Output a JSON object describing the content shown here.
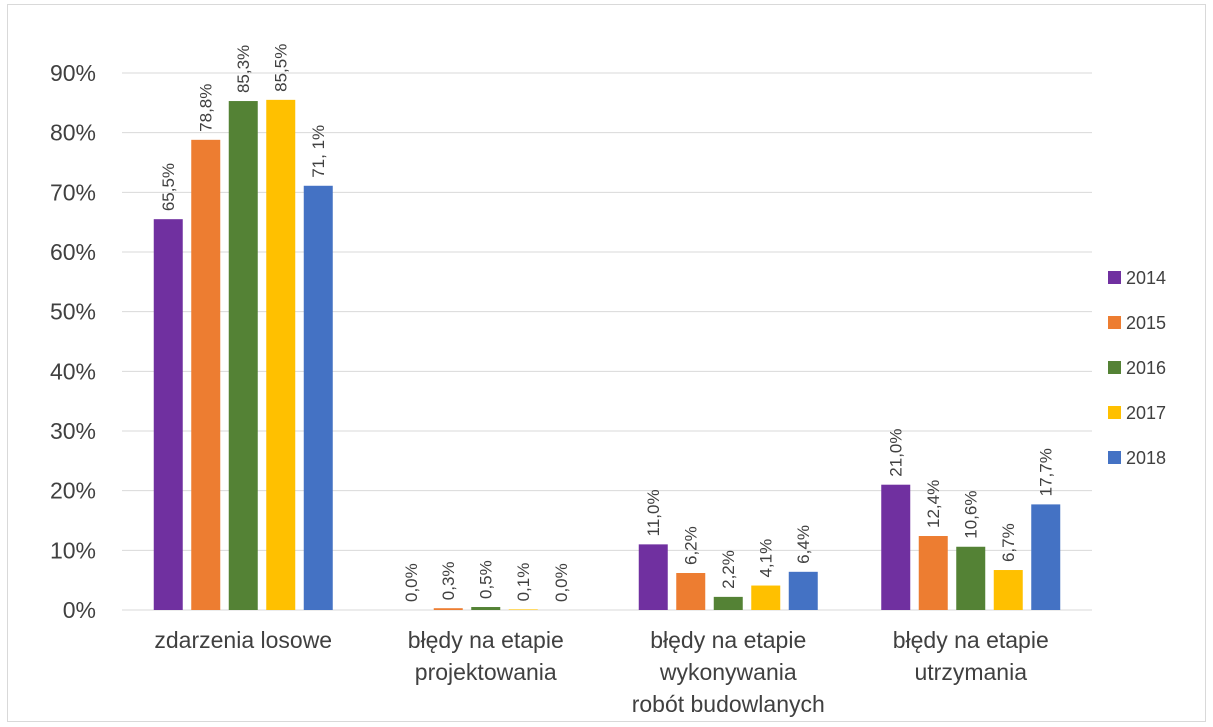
{
  "chart_data": {
    "type": "bar",
    "title": "",
    "xlabel": "",
    "ylabel": "",
    "ylim": [
      0,
      0.9
    ],
    "yticks": [
      "0%",
      "10%",
      "20%",
      "30%",
      "40%",
      "50%",
      "60%",
      "70%",
      "80%",
      "90%"
    ],
    "grid": true,
    "legend_position": "right",
    "categories": [
      [
        "zdarzenia losowe"
      ],
      [
        "błędy na etapie",
        "projektowania"
      ],
      [
        "błędy na etapie",
        "wykonywania",
        "robót budowlanych"
      ],
      [
        "błędy na etapie",
        "utrzymania"
      ]
    ],
    "series": [
      {
        "name": "2014",
        "color": "#7030a0",
        "values": [
          0.655,
          0.0,
          0.11,
          0.21
        ],
        "labels": [
          "65,5%",
          "0,0%",
          "11,0%",
          "21,0%"
        ]
      },
      {
        "name": "2015",
        "color": "#ed7d31",
        "values": [
          0.788,
          0.003,
          0.062,
          0.124
        ],
        "labels": [
          "78,8%",
          "0,3%",
          "6,2%",
          "12,4%"
        ]
      },
      {
        "name": "2016",
        "color": "#548235",
        "values": [
          0.853,
          0.005,
          0.022,
          0.106
        ],
        "labels": [
          "85,3%",
          "0,5%",
          "2,2%",
          "10,6%"
        ]
      },
      {
        "name": "2017",
        "color": "#ffc000",
        "values": [
          0.855,
          0.001,
          0.041,
          0.067
        ],
        "labels": [
          "85,5%",
          "0,1%",
          "4,1%",
          "6,7%"
        ]
      },
      {
        "name": "2018",
        "color": "#4472c4",
        "values": [
          0.711,
          0.0,
          0.064,
          0.177
        ],
        "labels": [
          "71, 1%",
          "0,0%",
          "6,4%",
          "17,7%"
        ]
      }
    ]
  }
}
